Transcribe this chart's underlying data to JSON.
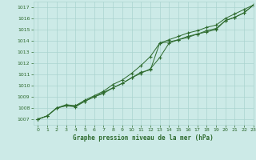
{
  "bg_color": "#cceae7",
  "grid_color": "#aad4d0",
  "line_color": "#2d6a2d",
  "marker_color": "#2d6a2d",
  "title": "Graphe pression niveau de la mer (hPa)",
  "xlim": [
    -0.5,
    23
  ],
  "ylim": [
    1006.5,
    1017.5
  ],
  "yticks": [
    1007,
    1008,
    1009,
    1010,
    1011,
    1012,
    1013,
    1014,
    1015,
    1016,
    1017
  ],
  "xticks": [
    0,
    1,
    2,
    3,
    4,
    5,
    6,
    7,
    8,
    9,
    10,
    11,
    12,
    13,
    14,
    15,
    16,
    17,
    18,
    19,
    20,
    21,
    22,
    23
  ],
  "series1_x": [
    0,
    1,
    2,
    3,
    4,
    5,
    6,
    7,
    8,
    9,
    10,
    11,
    12,
    13,
    14,
    15,
    16,
    17,
    18,
    19,
    20,
    21,
    22,
    23
  ],
  "series1_y": [
    1007.0,
    1007.3,
    1008.0,
    1008.2,
    1008.2,
    1008.6,
    1009.0,
    1009.4,
    1009.8,
    1010.2,
    1010.7,
    1011.1,
    1011.5,
    1012.5,
    1013.8,
    1014.1,
    1014.4,
    1014.6,
    1014.9,
    1015.1,
    1015.8,
    1016.1,
    1016.5,
    1017.2
  ],
  "series2_x": [
    0,
    1,
    2,
    3,
    4,
    5,
    6,
    7,
    8,
    9,
    10,
    11,
    12,
    13,
    14,
    15,
    16,
    17,
    18,
    19,
    20,
    21,
    22,
    23
  ],
  "series2_y": [
    1007.0,
    1007.3,
    1008.0,
    1008.2,
    1008.1,
    1008.6,
    1009.0,
    1009.3,
    1009.8,
    1010.2,
    1010.7,
    1011.2,
    1011.4,
    1013.8,
    1013.9,
    1014.1,
    1014.3,
    1014.6,
    1014.8,
    1015.0,
    1015.8,
    1016.1,
    1016.5,
    1017.2
  ],
  "series3_x": [
    0,
    1,
    2,
    3,
    4,
    5,
    6,
    7,
    8,
    9,
    10,
    11,
    12,
    13,
    14,
    15,
    16,
    17,
    18,
    19,
    20,
    21,
    22,
    23
  ],
  "series3_y": [
    1007.0,
    1007.3,
    1008.0,
    1008.3,
    1008.2,
    1008.7,
    1009.1,
    1009.5,
    1010.1,
    1010.5,
    1011.1,
    1011.8,
    1012.6,
    1013.8,
    1014.1,
    1014.4,
    1014.7,
    1014.9,
    1015.2,
    1015.4,
    1016.0,
    1016.4,
    1016.8,
    1017.2
  ]
}
